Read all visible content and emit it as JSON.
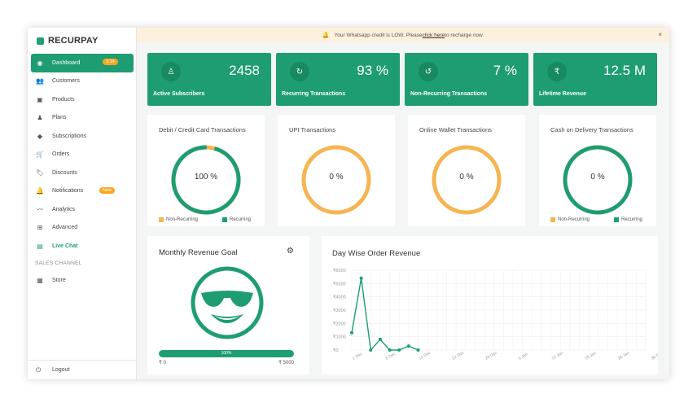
{
  "app": {
    "logo_text": "RECURPAY"
  },
  "colors": {
    "brand_green": "#1e9d72",
    "accent_orange": "#f5b552",
    "notice_bg": "#fdf0dc",
    "badge_orange": "#f5a623"
  },
  "notice": {
    "prefix": "Your Whatsapp credit is LOW. Please ",
    "link": "click here",
    "suffix": " to recharge now.",
    "icon": "bell-icon",
    "close": "×"
  },
  "sidebar": {
    "items": [
      {
        "label": "Dashboard",
        "icon": "dashboard-icon",
        "badge": "3.14",
        "active": true
      },
      {
        "label": "Customers",
        "icon": "users-icon"
      },
      {
        "label": "Products",
        "icon": "box-icon"
      },
      {
        "label": "Plans",
        "icon": "plans-icon"
      },
      {
        "label": "Subscriptions",
        "icon": "layers-icon"
      },
      {
        "label": "Orders",
        "icon": "cart-icon"
      },
      {
        "label": "Discounts",
        "icon": "tag-icon"
      },
      {
        "label": "Notifications",
        "icon": "bell-icon",
        "badge": "New"
      },
      {
        "label": "Analytics",
        "icon": "trend-icon"
      },
      {
        "label": "Advanced",
        "icon": "plus-box-icon"
      },
      {
        "label": "Live Chat",
        "icon": "chat-icon",
        "live": true
      }
    ],
    "section_label": "SALES CHANNEL",
    "store": {
      "label": "Store",
      "icon": "store-icon"
    },
    "logout": {
      "label": "Logout",
      "icon": "logout-icon"
    }
  },
  "stats": [
    {
      "value": "2458",
      "label": "Active Subscribers",
      "icon": "person-icon"
    },
    {
      "value": "93 %",
      "label": "Recurring Transactions",
      "icon": "refresh-icon"
    },
    {
      "value": "7 %",
      "label": "Non-Recurring Transactions",
      "icon": "non-recurring-icon"
    },
    {
      "value": "12.5 M",
      "label": "Lifetime Revenue",
      "icon": "rupee-icon"
    }
  ],
  "donuts": [
    {
      "title": "Debit / Credit Card Transactions",
      "pct": "100 %",
      "recurring": 0.96,
      "legend": true
    },
    {
      "title": "UPI Transactions",
      "pct": "0 %",
      "recurring": 0,
      "legend": false
    },
    {
      "title": "Online Wallet Transactions",
      "pct": "0 %",
      "recurring": 0,
      "legend": false
    },
    {
      "title": "Cash on Delivery Transactions",
      "pct": "0 %",
      "recurring": 1,
      "legend": true
    }
  ],
  "legend": {
    "non_recurring": "Non-Recurring",
    "recurring": "Recurring"
  },
  "goal": {
    "title": "Monthly Revenue Goal",
    "gear_icon": "gear-icon",
    "face_icon": "sunglasses-smiley-icon",
    "progress": 1.0,
    "progress_label": "100%",
    "min_label": "₹ 0",
    "max_label": "₹ 5000"
  },
  "chart_data": {
    "type": "line",
    "title": "Day Wise Order Revenue",
    "yticks": [
      "₹6000",
      "₹5000",
      "₹4000",
      "₹3000",
      "₹2000",
      "₹1000",
      "₹0"
    ],
    "ylim": [
      0,
      6000
    ],
    "xticks": [
      "1 Dec",
      "8 Dec",
      "15 Dec",
      "22 Dec",
      "29 Dec",
      "5 Jan",
      "12 Jan",
      "19 Jan",
      "26 Jan",
      "30 Dec"
    ],
    "x_total_days": 32,
    "series": [
      {
        "days": [
          0,
          1,
          2,
          3,
          4,
          5,
          6,
          7
        ],
        "values": [
          1300,
          5400,
          0,
          800,
          0,
          0,
          300,
          0
        ]
      }
    ]
  }
}
